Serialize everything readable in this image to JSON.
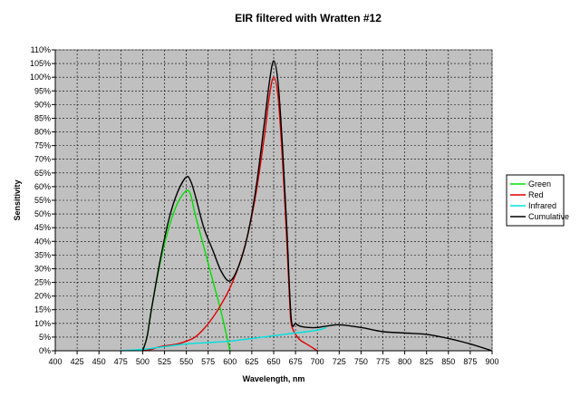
{
  "chart_data": {
    "type": "line",
    "title": "EIR filtered with Wratten #12",
    "xlabel": "Wavelength, nm",
    "ylabel": "Sensitivity",
    "xlim": [
      400,
      900
    ],
    "ylim": [
      0,
      110
    ],
    "x_ticks": [
      "400",
      "425",
      "450",
      "475",
      "500",
      "525",
      "550",
      "575",
      "600",
      "625",
      "650",
      "675",
      "700",
      "725",
      "750",
      "775",
      "800",
      "825",
      "850",
      "875",
      "900"
    ],
    "y_ticks": [
      "0%",
      "5%",
      "10%",
      "15%",
      "20%",
      "25%",
      "30%",
      "35%",
      "40%",
      "45%",
      "50%",
      "55%",
      "60%",
      "65%",
      "70%",
      "75%",
      "80%",
      "85%",
      "90%",
      "95%",
      "100%",
      "105%",
      "110%"
    ],
    "grid": true,
    "legend_position": "right",
    "colors": {
      "plot_bg": "#c0c0c0",
      "grid": "#000000"
    },
    "series": [
      {
        "name": "Green",
        "color": "#00e000",
        "points": [
          [
            500,
            0
          ],
          [
            505,
            5
          ],
          [
            510,
            15
          ],
          [
            520,
            32
          ],
          [
            530,
            45
          ],
          [
            540,
            54
          ],
          [
            550,
            58.5
          ],
          [
            555,
            57
          ],
          [
            560,
            50
          ],
          [
            570,
            38
          ],
          [
            580,
            26
          ],
          [
            590,
            14
          ],
          [
            600,
            0
          ]
        ]
      },
      {
        "name": "Red",
        "color": "#e00000",
        "points": [
          [
            500,
            0
          ],
          [
            510,
            0.5
          ],
          [
            520,
            1.5
          ],
          [
            530,
            2
          ],
          [
            540,
            2.5
          ],
          [
            550,
            3.5
          ],
          [
            560,
            5
          ],
          [
            570,
            8
          ],
          [
            580,
            12
          ],
          [
            590,
            17
          ],
          [
            600,
            23
          ],
          [
            610,
            31
          ],
          [
            620,
            42
          ],
          [
            630,
            58
          ],
          [
            640,
            80
          ],
          [
            645,
            93
          ],
          [
            650,
            100
          ],
          [
            655,
            93
          ],
          [
            660,
            70
          ],
          [
            665,
            40
          ],
          [
            668,
            20
          ],
          [
            670,
            10
          ],
          [
            675,
            6
          ],
          [
            680,
            4
          ],
          [
            690,
            2
          ],
          [
            700,
            0
          ]
        ]
      },
      {
        "name": "Infrared",
        "color": "#00e0e0",
        "points": [
          [
            475,
            0
          ],
          [
            500,
            0.5
          ],
          [
            525,
            1.5
          ],
          [
            550,
            2.5
          ],
          [
            575,
            3
          ],
          [
            600,
            3.5
          ],
          [
            625,
            4.5
          ],
          [
            650,
            5.5
          ],
          [
            675,
            6.5
          ],
          [
            700,
            7.5
          ],
          [
            710,
            8.5
          ]
        ]
      },
      {
        "name": "Cumulative",
        "color": "#000000",
        "points": [
          [
            500,
            0
          ],
          [
            505,
            5
          ],
          [
            510,
            15
          ],
          [
            520,
            33
          ],
          [
            530,
            48
          ],
          [
            540,
            58
          ],
          [
            550,
            63.5
          ],
          [
            555,
            62
          ],
          [
            560,
            57
          ],
          [
            570,
            45
          ],
          [
            580,
            37
          ],
          [
            590,
            29
          ],
          [
            600,
            25.5
          ],
          [
            610,
            31
          ],
          [
            620,
            42
          ],
          [
            630,
            60
          ],
          [
            640,
            85
          ],
          [
            645,
            98
          ],
          [
            650,
            106
          ],
          [
            655,
            98
          ],
          [
            660,
            75
          ],
          [
            665,
            45
          ],
          [
            670,
            12
          ],
          [
            675,
            10
          ],
          [
            680,
            9
          ],
          [
            690,
            8.5
          ],
          [
            700,
            8.5
          ],
          [
            710,
            9
          ],
          [
            725,
            9.5
          ],
          [
            750,
            8.5
          ],
          [
            775,
            7
          ],
          [
            800,
            6.5
          ],
          [
            825,
            6
          ],
          [
            850,
            4.5
          ],
          [
            875,
            2.5
          ],
          [
            900,
            0
          ]
        ]
      }
    ]
  }
}
